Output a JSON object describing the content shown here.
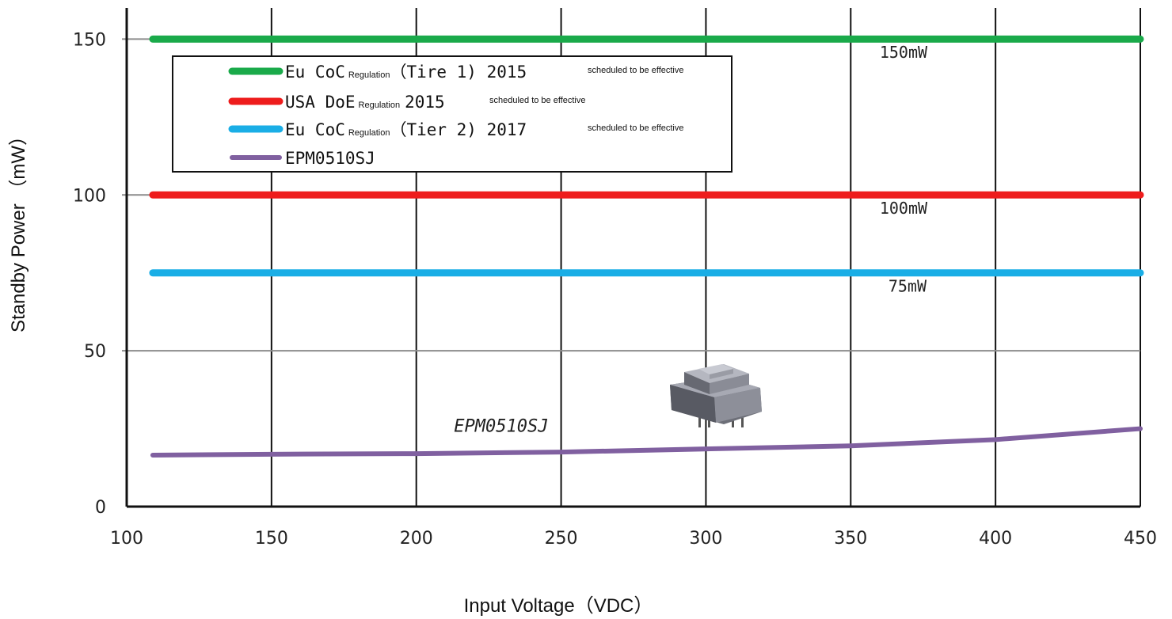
{
  "chart_data": {
    "type": "line",
    "title": "",
    "xlabel": "Input Voltage（VDC）",
    "ylabel": "Standby Power （mW）",
    "xlim": [
      100,
      450
    ],
    "ylim": [
      0,
      160
    ],
    "xticks": [
      100,
      150,
      200,
      250,
      300,
      350,
      400,
      450
    ],
    "xtick_labels": [
      "100",
      "150",
      "200",
      "250",
      "300",
      "350",
      "400",
      "450"
    ],
    "yticks": [
      0,
      50,
      100,
      150
    ],
    "ytick_labels": [
      "0",
      "50",
      "100",
      "150"
    ],
    "grid": true,
    "legend_position": "top-left",
    "series": [
      {
        "key": "tier1",
        "name_main": "Eu CoC",
        "name_reg": "Regulation",
        "name_rest": "（Tire 1)  2015",
        "name_sched": "scheduled to be effective",
        "color": "#1aaa4a",
        "x": [
          109,
          450
        ],
        "y": [
          150,
          150
        ],
        "annotation": "150mW",
        "annotation_at": [
          360,
          144
        ]
      },
      {
        "key": "doe",
        "name_main": "USA DoE",
        "name_reg": "Regulation",
        "name_rest": "2015",
        "name_sched": "scheduled to be effective",
        "color": "#ee1c1c",
        "x": [
          109,
          450
        ],
        "y": [
          100,
          100
        ],
        "annotation": "100mW",
        "annotation_at": [
          360,
          94
        ]
      },
      {
        "key": "tier2",
        "name_main": "Eu CoC",
        "name_reg": "Regulation",
        "name_rest": "（Tier 2)  2017",
        "name_sched": "scheduled to be effective",
        "color": "#1aaee6",
        "x": [
          109,
          450
        ],
        "y": [
          75,
          75
        ],
        "annotation": "75mW",
        "annotation_at": [
          363,
          69
        ]
      },
      {
        "key": "epm",
        "name_main": "EPM0510SJ",
        "name_reg": "",
        "name_rest": "",
        "name_sched": "",
        "color": "#8060a0",
        "x": [
          109,
          150,
          200,
          250,
          300,
          350,
          400,
          450
        ],
        "y": [
          16.5,
          16.8,
          17.0,
          17.5,
          18.5,
          19.5,
          21.5,
          25.0
        ],
        "inline_label": "EPM0510SJ",
        "inline_label_at": [
          213,
          24
        ]
      }
    ]
  }
}
